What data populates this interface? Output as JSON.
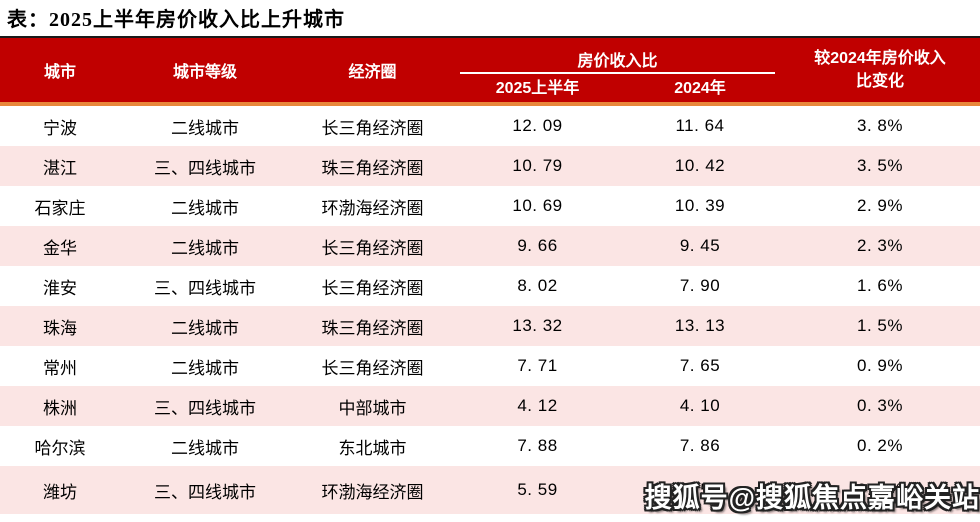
{
  "title": "表：2025上半年房价收入比上升城市",
  "watermark": "搜狐号@搜狐焦点嘉峪关站",
  "colors": {
    "header_bg": "#C00000",
    "header_text": "#FFFFFF",
    "accent_line": "#E8873B",
    "stripe_pink": "#FBE5E4",
    "top_border": "#1A1A1A"
  },
  "header": {
    "city": "城市",
    "tier": "城市等级",
    "zone": "经济圈",
    "ratio_group": "房价收入比",
    "h1_2025": "2025上半年",
    "y2024": "2024年",
    "change_line1": "较2024年房价收入",
    "change_line2": "比变化"
  },
  "rows": [
    {
      "city": "宁波",
      "tier": "二线城市",
      "zone": "长三角经济圈",
      "h1_2025": "12. 09",
      "y2024": "11. 64",
      "change": "3. 8%"
    },
    {
      "city": "湛江",
      "tier": "三、四线城市",
      "zone": "珠三角经济圈",
      "h1_2025": "10. 79",
      "y2024": "10. 42",
      "change": "3. 5%"
    },
    {
      "city": "石家庄",
      "tier": "二线城市",
      "zone": "环渤海经济圈",
      "h1_2025": "10. 69",
      "y2024": "10. 39",
      "change": "2. 9%"
    },
    {
      "city": "金华",
      "tier": "二线城市",
      "zone": "长三角经济圈",
      "h1_2025": "9. 66",
      "y2024": "9. 45",
      "change": "2. 3%"
    },
    {
      "city": "淮安",
      "tier": "三、四线城市",
      "zone": "长三角经济圈",
      "h1_2025": "8. 02",
      "y2024": "7. 90",
      "change": "1. 6%"
    },
    {
      "city": "珠海",
      "tier": "二线城市",
      "zone": "珠三角经济圈",
      "h1_2025": "13. 32",
      "y2024": "13. 13",
      "change": "1. 5%"
    },
    {
      "city": "常州",
      "tier": "二线城市",
      "zone": "长三角经济圈",
      "h1_2025": "7. 71",
      "y2024": "7. 65",
      "change": "0. 9%"
    },
    {
      "city": "株洲",
      "tier": "三、四线城市",
      "zone": "中部城市",
      "h1_2025": "4. 12",
      "y2024": "4. 10",
      "change": "0. 3%"
    },
    {
      "city": "哈尔滨",
      "tier": "二线城市",
      "zone": "东北城市",
      "h1_2025": "7. 88",
      "y2024": "7. 86",
      "change": "0. 2%"
    },
    {
      "city": "潍坊",
      "tier": "三、四线城市",
      "zone": "环渤海经济圈",
      "h1_2025": "5. 59",
      "y2024": "5. 58",
      "change": "0. 2%"
    }
  ],
  "chart_data": {
    "type": "table",
    "title": "表：2025上半年房价收入比上升城市",
    "columns": [
      "城市",
      "城市等级",
      "经济圈",
      "房价收入比-2025上半年",
      "房价收入比-2024年",
      "较2024年房价收入比变化"
    ],
    "rows": [
      [
        "宁波",
        "二线城市",
        "长三角经济圈",
        12.09,
        11.64,
        "3.8%"
      ],
      [
        "湛江",
        "三、四线城市",
        "珠三角经济圈",
        10.79,
        10.42,
        "3.5%"
      ],
      [
        "石家庄",
        "二线城市",
        "环渤海经济圈",
        10.69,
        10.39,
        "2.9%"
      ],
      [
        "金华",
        "二线城市",
        "长三角经济圈",
        9.66,
        9.45,
        "2.3%"
      ],
      [
        "淮安",
        "三、四线城市",
        "长三角经济圈",
        8.02,
        7.9,
        "1.6%"
      ],
      [
        "珠海",
        "二线城市",
        "珠三角经济圈",
        13.32,
        13.13,
        "1.5%"
      ],
      [
        "常州",
        "二线城市",
        "长三角经济圈",
        7.71,
        7.65,
        "0.9%"
      ],
      [
        "株洲",
        "三、四线城市",
        "中部城市",
        4.12,
        4.1,
        "0.3%"
      ],
      [
        "哈尔滨",
        "二线城市",
        "东北城市",
        7.88,
        7.86,
        "0.2%"
      ],
      [
        "潍坊",
        "三、四线城市",
        "环渤海经济圈",
        5.59,
        5.58,
        "0.2%"
      ]
    ]
  }
}
